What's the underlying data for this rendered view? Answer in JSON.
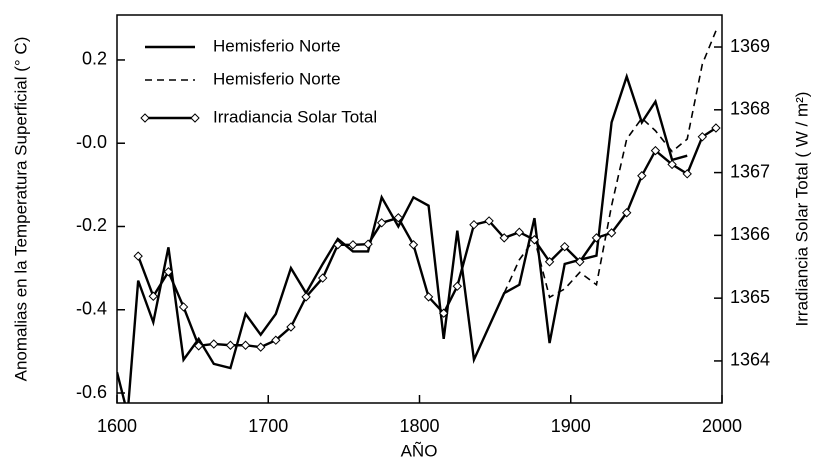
{
  "chart_data": {
    "type": "line",
    "xlabel": "AÑO",
    "ylabel": "Anomalias en la Temperatura Superficial (° C)",
    "y2label": "Irradiancia Solar Total ( W / m²)",
    "xlim": [
      1600,
      2000
    ],
    "xticks": [
      1600,
      1700,
      1800,
      1900,
      2000
    ],
    "ylim": [
      -0.624,
      0.308
    ],
    "yticks": [
      -0.6,
      -0.4,
      -0.2,
      {
        "value": 0,
        "label": "-0.0"
      },
      0.2
    ],
    "y2lim": [
      1363.33,
      1369.51
    ],
    "y2ticks": [
      1364,
      1365,
      1366,
      1367,
      1368,
      1369
    ],
    "legend": "upper left",
    "series": [
      {
        "name": "Hemisferio Norte",
        "color": "#000000",
        "dash": false,
        "marker": "none",
        "x": [
          1600,
          1607,
          1614,
          1624,
          1634,
          1644,
          1654,
          1664,
          1675,
          1685,
          1695,
          1705,
          1715,
          1725,
          1736,
          1746,
          1756,
          1766,
          1775,
          1786,
          1796,
          1806,
          1816,
          1825,
          1836,
          1846,
          1856,
          1866,
          1876,
          1886,
          1896,
          1906,
          1917,
          1927,
          1937,
          1947,
          1956,
          1967,
          1977
        ],
        "values": [
          -0.55,
          -0.65,
          -0.33,
          -0.43,
          -0.25,
          -0.52,
          -0.47,
          -0.53,
          -0.54,
          -0.41,
          -0.46,
          -0.41,
          -0.3,
          -0.36,
          -0.29,
          -0.23,
          -0.26,
          -0.26,
          -0.13,
          -0.2,
          -0.13,
          -0.15,
          -0.47,
          -0.21,
          -0.52,
          -0.44,
          -0.36,
          -0.34,
          -0.18,
          -0.48,
          -0.29,
          -0.28,
          -0.27,
          0.05,
          0.16,
          0.05,
          0.1,
          -0.04,
          -0.03
        ]
      },
      {
        "name": "Hemisferio Norte",
        "color": "#000000",
        "dash": true,
        "marker": "none",
        "x": [
          1856,
          1866,
          1876,
          1886,
          1896,
          1906,
          1917,
          1927,
          1937,
          1947,
          1956,
          1967,
          1977,
          1987,
          1996
        ],
        "values": [
          -0.36,
          -0.28,
          -0.23,
          -0.37,
          -0.35,
          -0.31,
          -0.34,
          -0.15,
          0.01,
          0.06,
          0.03,
          -0.02,
          0.01,
          0.19,
          0.27
        ]
      },
      {
        "name": "Irradiancia Solar Total",
        "color": "#000000",
        "dash": false,
        "marker": "diamond",
        "axis": "y2",
        "x": [
          1614,
          1624,
          1634,
          1644,
          1654,
          1664,
          1675,
          1685,
          1695,
          1705,
          1715,
          1725,
          1736,
          1746,
          1756,
          1766,
          1775,
          1786,
          1796,
          1806,
          1816,
          1825,
          1836,
          1846,
          1856,
          1866,
          1876,
          1886,
          1896,
          1906,
          1917,
          1927,
          1937,
          1947,
          1956,
          1967,
          1977,
          1987,
          1996
        ],
        "values": [
          1365.67,
          1365.03,
          1365.42,
          1364.86,
          1364.24,
          1364.27,
          1364.25,
          1364.25,
          1364.22,
          1364.33,
          1364.54,
          1365.02,
          1365.32,
          1365.85,
          1365.85,
          1365.86,
          1366.2,
          1366.28,
          1365.85,
          1365.02,
          1364.76,
          1365.19,
          1366.17,
          1366.23,
          1365.96,
          1366.05,
          1365.93,
          1365.58,
          1365.82,
          1365.58,
          1365.96,
          1366.04,
          1366.36,
          1366.95,
          1367.35,
          1367.13,
          1366.98,
          1367.57,
          1367.71
        ]
      }
    ]
  }
}
